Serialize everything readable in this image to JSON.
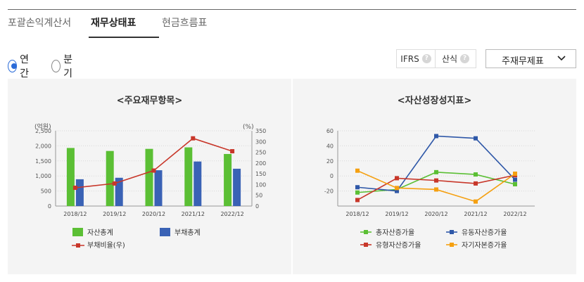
{
  "tabs": [
    {
      "label": "포괄손익계산서"
    },
    {
      "label": "재무상태표"
    },
    {
      "label": "현금흐름표"
    }
  ],
  "period_options": [
    {
      "label": "연간",
      "checked": true
    },
    {
      "label": "분기",
      "checked": false
    }
  ],
  "options": {
    "ifrs_label": "IFRS",
    "method_label": "산식",
    "help": "?"
  },
  "statement_select": {
    "selected": "주재무제표"
  },
  "colors": {
    "asset_total": "#5bbf34",
    "debt_total": "#3a62b5",
    "debt_ratio": "#c8372a",
    "total_asset_growth": "#5bbf34",
    "current_asset_growth": "#2f58a8",
    "tangible_asset_growth": "#c8372a",
    "equity_growth": "#f5a011"
  },
  "left_chart": {
    "title": "<주요재무항목>",
    "chart_data": {
      "type": "bar",
      "categories": [
        "2018/12",
        "2019/12",
        "2020/12",
        "2021/12",
        "2022/12"
      ],
      "y_left_label": "(억원)",
      "y_right_label": "(%)",
      "y_left_ticks": [
        "0",
        "500",
        "1,000",
        "1,500",
        "2,000",
        "2,500"
      ],
      "y_right_ticks": [
        "0",
        "50",
        "100",
        "150",
        "200",
        "250",
        "300",
        "350"
      ],
      "ylim": [
        0,
        2500
      ],
      "y2lim": [
        0,
        350
      ],
      "series": [
        {
          "name": "자산총계",
          "type": "bar",
          "values": [
            1930,
            1830,
            1900,
            1950,
            1730
          ]
        },
        {
          "name": "부채총계",
          "type": "bar",
          "values": [
            890,
            940,
            1190,
            1480,
            1240
          ]
        },
        {
          "name": "부채비율(우)",
          "type": "line",
          "axis": "right",
          "values": [
            85,
            105,
            165,
            315,
            255
          ]
        }
      ]
    }
  },
  "right_chart": {
    "title": "<자산성장성지표>",
    "chart_data": {
      "type": "line",
      "categories": [
        "2018/12",
        "2019/12",
        "2020/12",
        "2021/12",
        "2022/12"
      ],
      "y_ticks": [
        "60",
        "40",
        "20",
        "0",
        "-20"
      ],
      "ylim": [
        -40,
        60
      ],
      "series": [
        {
          "name": "총자산증가율",
          "values": [
            -22,
            -18,
            5,
            2,
            -11
          ]
        },
        {
          "name": "유동자산증가율",
          "values": [
            -15,
            -20,
            53,
            50,
            -5
          ]
        },
        {
          "name": "유형자산증가율",
          "values": [
            -32,
            -3,
            -6,
            -10,
            1
          ]
        },
        {
          "name": "자기자본증가율",
          "values": [
            7,
            -16,
            -18,
            -34,
            3
          ]
        }
      ]
    }
  }
}
